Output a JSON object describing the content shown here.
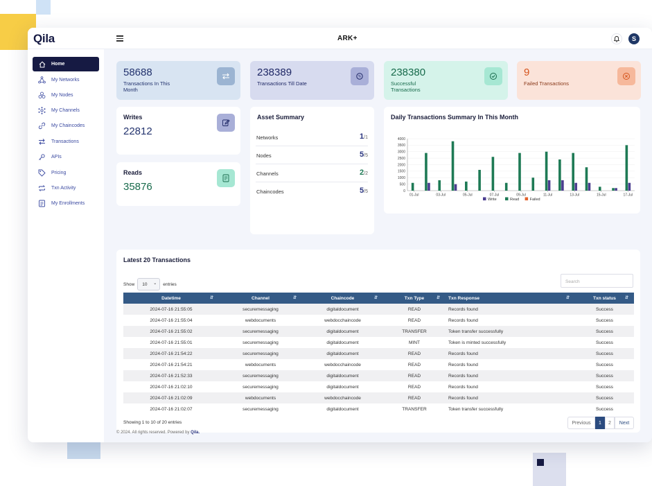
{
  "app": {
    "brand": "Qila",
    "product": "ARK+",
    "avatar_initial": "S"
  },
  "sidebar": {
    "items": [
      {
        "label": "Home",
        "icon": "home-icon"
      },
      {
        "label": "My Networks",
        "icon": "network-icon"
      },
      {
        "label": "My Nodes",
        "icon": "nodes-icon"
      },
      {
        "label": "My Channels",
        "icon": "channels-icon"
      },
      {
        "label": "My Chaincodes",
        "icon": "chaincode-icon"
      },
      {
        "label": "Transactions",
        "icon": "transfer-icon"
      },
      {
        "label": "APIs",
        "icon": "api-icon"
      },
      {
        "label": "Pricing",
        "icon": "tag-icon"
      },
      {
        "label": "Txn Activity",
        "icon": "activity-icon"
      },
      {
        "label": "My Enrollments",
        "icon": "enrollment-icon"
      }
    ]
  },
  "stats": [
    {
      "value": "58688",
      "label": "Transactions In This Month",
      "icon": "transfer-icon",
      "color": "#d8e4f2"
    },
    {
      "value": "238389",
      "label": "Transactions Till Date",
      "icon": "coin-icon",
      "color": "#d7dbef"
    },
    {
      "value": "238380",
      "label": "Successful Transactions",
      "icon": "check-circle-icon",
      "color": "#d5f3ea"
    },
    {
      "value": "9",
      "label": "Failed Transactions",
      "icon": "x-circle-icon",
      "color": "#fbe3d9"
    }
  ],
  "writes": {
    "title": "Writes",
    "value": "22812"
  },
  "reads": {
    "title": "Reads",
    "value": "35876"
  },
  "asset_summary": {
    "title": "Asset Summary",
    "rows": [
      {
        "name": "Networks",
        "value": "1",
        "total": "/1"
      },
      {
        "name": "Nodes",
        "value": "5",
        "total": "/5"
      },
      {
        "name": "Channels",
        "value": "2",
        "total": "/2"
      },
      {
        "name": "Chaincodes",
        "value": "5",
        "total": "/5"
      }
    ]
  },
  "chart_data": {
    "type": "bar",
    "title": "Daily Transactions Summary In This Month",
    "categories": [
      "01-Jul",
      "02-Jul",
      "03-Jul",
      "04-Jul",
      "05-Jul",
      "06-Jul",
      "07-Jul",
      "08-Jul",
      "09-Jul",
      "10-Jul",
      "11-Jul",
      "12-Jul",
      "13-Jul",
      "14-Jul",
      "15-Jul",
      "16-Jul",
      "17-Jul"
    ],
    "tick_labels": [
      "01-Jul",
      "03-Jul",
      "05-Jul",
      "07-Jul",
      "09-Jul",
      "11-Jul",
      "13-Jul",
      "15-Jul",
      "17-Jul"
    ],
    "series": [
      {
        "name": "Write",
        "color": "#4b3d8f",
        "values": [
          0,
          600,
          0,
          500,
          0,
          0,
          0,
          0,
          0,
          0,
          800,
          800,
          600,
          600,
          0,
          200,
          600
        ]
      },
      {
        "name": "Read",
        "color": "#1e7a55",
        "values": [
          600,
          2900,
          800,
          3800,
          700,
          1600,
          2600,
          600,
          2900,
          1000,
          3000,
          2400,
          2900,
          1800,
          300,
          200,
          3500
        ]
      },
      {
        "name": "Failed",
        "color": "#e2612b",
        "values": [
          0,
          0,
          0,
          0,
          0,
          0,
          0,
          0,
          0,
          0,
          0,
          0,
          0,
          0,
          0,
          0,
          0
        ]
      }
    ],
    "yticks": [
      "4000",
      "3500",
      "3000",
      "2500",
      "2000",
      "1500",
      "1000",
      "500",
      "0"
    ],
    "ylim": [
      0,
      4000
    ],
    "legend": "bottom"
  },
  "transactions": {
    "title": "Latest 20 Transactions",
    "show_label": "Show",
    "entries_label": "entries",
    "page_size": "10",
    "search_placeholder": "Search",
    "columns": [
      "Datetime",
      "Channel",
      "Chaincode",
      "Txn Type",
      "Txn Response",
      "Txn status"
    ],
    "rows": [
      [
        "2024-07-16 21:55:05",
        "securemessaging",
        "digitaldocument",
        "READ",
        "Records found",
        "Success"
      ],
      [
        "2024-07-16 21:55:04",
        "webdocuments",
        "webdocchaincode",
        "READ",
        "Records found",
        "Success"
      ],
      [
        "2024-07-16 21:55:02",
        "securemessaging",
        "digitaldocument",
        "TRANSFER",
        "Token transfer successfully",
        "Success"
      ],
      [
        "2024-07-16 21:55:01",
        "securemessaging",
        "digitaldocument",
        "MINT",
        "Token is minted successfully",
        "Success"
      ],
      [
        "2024-07-16 21:54:22",
        "securemessaging",
        "digitaldocument",
        "READ",
        "Records found",
        "Success"
      ],
      [
        "2024-07-16 21:54:21",
        "webdocuments",
        "webdocchaincode",
        "READ",
        "Records found",
        "Success"
      ],
      [
        "2024-07-16 21:52:33",
        "securemessaging",
        "digitaldocument",
        "READ",
        "Records found",
        "Success"
      ],
      [
        "2024-07-16 21:02:10",
        "securemessaging",
        "digitaldocument",
        "READ",
        "Records found",
        "Success"
      ],
      [
        "2024-07-16 21:02:09",
        "webdocuments",
        "webdocchaincode",
        "READ",
        "Records found",
        "Success"
      ],
      [
        "2024-07-16 21:02:07",
        "securemessaging",
        "digitaldocument",
        "TRANSFER",
        "Token transfer successfully",
        "Success"
      ]
    ],
    "info": "Showing 1 to 10 of 20 entries",
    "pager": {
      "previous": "Previous",
      "pages": [
        "1",
        "2"
      ],
      "next": "Next"
    }
  },
  "footer": {
    "text": "© 2024. All rights reserved. Powered by",
    "brand": "Qila."
  }
}
